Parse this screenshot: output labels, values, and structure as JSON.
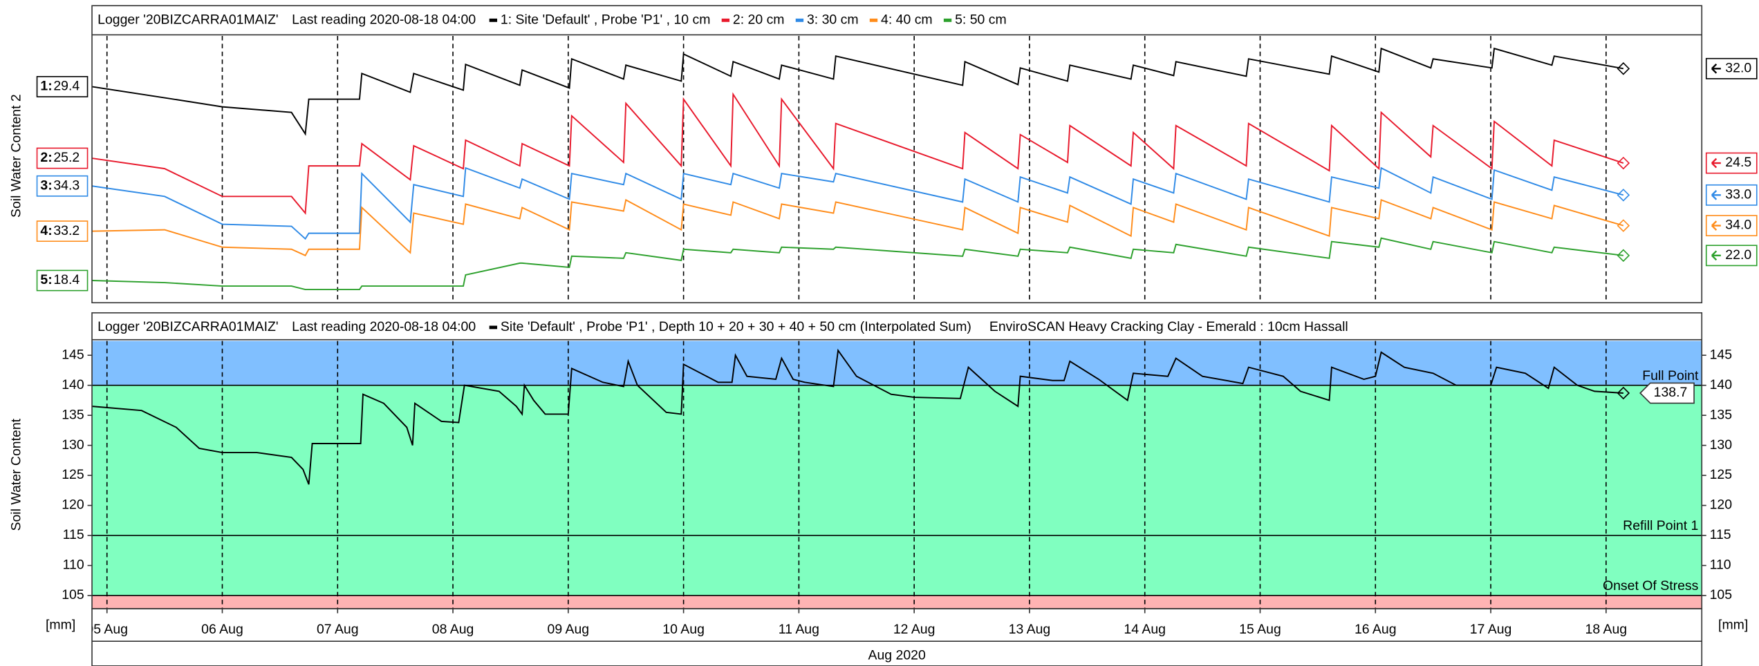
{
  "chart_data": [
    {
      "type": "line",
      "title": "Logger '20BIZCARRA01MAIZ'",
      "subtitle": "Last reading 2020-08-18 04:00",
      "y_label": "Soil Water Content 2",
      "x": [
        4.87,
        5.5,
        6.0,
        6.6,
        6.72,
        6.75,
        7.19,
        7.21,
        7.63,
        7.66,
        8.09,
        8.11,
        8.58,
        8.6,
        9.01,
        9.03,
        9.48,
        9.5,
        9.98,
        10.0,
        10.41,
        10.43,
        10.83,
        10.85,
        11.3,
        11.32,
        12.42,
        12.44,
        12.9,
        12.92,
        13.33,
        13.35,
        13.88,
        13.9,
        14.25,
        14.27,
        14.88,
        14.9,
        15.6,
        15.62,
        16.03,
        16.05,
        16.48,
        16.5,
        17.01,
        17.03,
        17.53,
        17.55,
        18.15
      ],
      "xlim": [
        4.87,
        18.83
      ],
      "xticks": [
        5,
        6,
        7,
        8,
        9,
        10,
        11,
        12,
        13,
        14,
        15,
        16,
        17,
        18
      ],
      "grid": true,
      "series": [
        {
          "name": "1: Site 'Default' , Probe 'P1' , 10 cm",
          "label": "1:",
          "color": "#000000",
          "ylim": [
            -1.7,
            36.7
          ],
          "end_label": "32.0",
          "values": [
            29.4,
            27.8,
            26.5,
            25.7,
            22.6,
            27.6,
            27.6,
            31.3,
            28.6,
            31.3,
            28.9,
            32.6,
            29.6,
            31.8,
            29.2,
            33.4,
            30.5,
            32.5,
            30.2,
            34.1,
            30.9,
            33.0,
            30.5,
            32.5,
            30.5,
            33.8,
            29.6,
            33.0,
            29.7,
            32.1,
            30.2,
            32.5,
            30.5,
            32.5,
            31.0,
            33.0,
            30.9,
            33.4,
            31.2,
            33.8,
            31.5,
            34.9,
            32.1,
            33.4,
            32.1,
            34.9,
            32.5,
            33.8,
            32.0
          ]
        },
        {
          "name": "2: 20 cm",
          "label": "2:",
          "color": "#e8192c",
          "ylim": [
            4.4,
            42.8
          ],
          "end_label": "24.5",
          "values": [
            25.2,
            23.7,
            19.7,
            19.7,
            17.3,
            24.1,
            24.1,
            27.3,
            22.1,
            27.0,
            23.7,
            27.8,
            24.1,
            27.3,
            24.1,
            31.3,
            24.6,
            33.1,
            24.1,
            33.7,
            24.1,
            34.4,
            24.1,
            33.7,
            23.7,
            30.2,
            23.7,
            28.9,
            23.7,
            28.6,
            24.6,
            29.9,
            24.1,
            28.9,
            23.7,
            29.9,
            24.1,
            30.2,
            23.4,
            29.9,
            23.7,
            31.8,
            25.4,
            29.9,
            23.7,
            30.5,
            24.1,
            27.8,
            24.5
          ]
        },
        {
          "name": "3: 30 cm",
          "label": "3:",
          "color": "#2f8ae6",
          "ylim": [
            17.5,
            55.9
          ],
          "end_label": "33.0",
          "values": [
            34.3,
            32.8,
            28.8,
            28.5,
            26.7,
            27.5,
            27.5,
            36.1,
            29.1,
            34.5,
            32.8,
            36.9,
            34.0,
            35.3,
            32.4,
            36.1,
            34.5,
            36.1,
            32.4,
            36.1,
            34.5,
            36.1,
            34.0,
            36.1,
            34.9,
            36.1,
            32.0,
            35.3,
            32.0,
            35.6,
            33.3,
            35.6,
            31.7,
            35.3,
            33.3,
            36.1,
            32.4,
            35.3,
            32.0,
            35.6,
            34.0,
            36.9,
            33.3,
            35.6,
            32.4,
            36.6,
            33.7,
            35.6,
            33.0
          ]
        },
        {
          "name": "4: 40 cm",
          "label": "4:",
          "color": "#ff8c1a",
          "ylim": [
            22.9,
            61.3
          ],
          "end_label": "34.0",
          "values": [
            33.2,
            33.4,
            30.9,
            30.6,
            29.7,
            30.6,
            30.6,
            36.6,
            30.1,
            35.8,
            34.2,
            37.1,
            35.0,
            36.6,
            33.4,
            37.4,
            36.1,
            37.7,
            33.4,
            37.1,
            35.5,
            37.4,
            35.0,
            37.1,
            35.8,
            37.4,
            33.4,
            36.6,
            32.9,
            36.6,
            34.5,
            36.9,
            32.5,
            36.6,
            34.5,
            37.1,
            33.4,
            36.6,
            32.5,
            36.6,
            35.0,
            37.7,
            35.0,
            36.6,
            33.4,
            37.4,
            35.0,
            36.9,
            34.0
          ]
        },
        {
          "name": "5: 50 cm",
          "label": "5:",
          "color": "#2ca02c",
          "ylim": [
            15.2,
            53.6
          ],
          "end_label": "22.0",
          "values": [
            18.4,
            18.1,
            17.6,
            17.6,
            17.1,
            17.1,
            17.1,
            17.6,
            17.6,
            17.6,
            17.6,
            19.2,
            20.9,
            20.9,
            20.3,
            21.9,
            21.6,
            22.4,
            21.3,
            22.9,
            22.4,
            22.9,
            22.4,
            23.2,
            22.9,
            23.2,
            21.9,
            22.9,
            21.9,
            22.9,
            22.4,
            23.2,
            21.6,
            22.9,
            22.4,
            23.6,
            21.9,
            23.2,
            21.6,
            24.0,
            23.2,
            24.5,
            22.9,
            24.0,
            22.4,
            24.0,
            22.4,
            23.2,
            22.0
          ]
        }
      ]
    },
    {
      "type": "line",
      "title": "Logger '20BIZCARRA01MAIZ'",
      "subtitle": "Last reading 2020-08-18 04:00",
      "note": "EnviroSCAN Heavy Cracking Clay - Emerald : 10cm Hassall",
      "y_label": "Soil Water Content",
      "unit_label": "[mm]",
      "x_label": "Aug 2020",
      "x": [
        4.87,
        5.3,
        5.6,
        5.8,
        6.0,
        6.3,
        6.6,
        6.7,
        6.75,
        6.78,
        7.2,
        7.22,
        7.4,
        7.6,
        7.65,
        7.67,
        7.9,
        8.05,
        8.1,
        8.4,
        8.55,
        8.6,
        8.62,
        8.7,
        8.8,
        9.0,
        9.03,
        9.3,
        9.48,
        9.52,
        9.6,
        9.85,
        9.98,
        10.0,
        10.3,
        10.42,
        10.45,
        10.55,
        10.8,
        10.85,
        10.95,
        11.05,
        11.3,
        11.34,
        11.5,
        11.8,
        12.0,
        12.4,
        12.47,
        12.7,
        12.9,
        12.92,
        13.2,
        13.3,
        13.35,
        13.6,
        13.85,
        13.9,
        14.2,
        14.27,
        14.5,
        14.85,
        14.9,
        15.2,
        15.35,
        15.6,
        15.62,
        15.9,
        16.0,
        16.05,
        16.25,
        16.5,
        16.7,
        17.0,
        17.05,
        17.3,
        17.5,
        17.55,
        17.75,
        17.9,
        18.15
      ],
      "xlim": [
        4.87,
        18.83
      ],
      "xticks": [
        {
          "value": 5,
          "label": "05 Aug"
        },
        {
          "value": 6,
          "label": "06 Aug"
        },
        {
          "value": 7,
          "label": "07 Aug"
        },
        {
          "value": 8,
          "label": "08 Aug"
        },
        {
          "value": 9,
          "label": "09 Aug"
        },
        {
          "value": 10,
          "label": "10 Aug"
        },
        {
          "value": 11,
          "label": "11 Aug"
        },
        {
          "value": 12,
          "label": "12 Aug"
        },
        {
          "value": 13,
          "label": "13 Aug"
        },
        {
          "value": 14,
          "label": "14 Aug"
        },
        {
          "value": 15,
          "label": "15 Aug"
        },
        {
          "value": 16,
          "label": "16 Aug"
        },
        {
          "value": 17,
          "label": "17 Aug"
        },
        {
          "value": 18,
          "label": "18 Aug"
        }
      ],
      "ylim": [
        102.8,
        147.4
      ],
      "yticks": [
        105,
        110,
        115,
        120,
        125,
        130,
        135,
        140,
        145
      ],
      "grid": true,
      "zones": [
        {
          "from": 140,
          "to": 147.4,
          "color": "#80bfff"
        },
        {
          "from": 105,
          "to": 140,
          "color": "#80ffc0"
        },
        {
          "from": 102.8,
          "to": 105,
          "color": "#ffb3b3"
        }
      ],
      "reference_lines": [
        {
          "value": 140,
          "label": "Full Point"
        },
        {
          "value": 115,
          "label": "Refill Point 1"
        },
        {
          "value": 105,
          "label": "Onset Of Stress"
        }
      ],
      "series": [
        {
          "name": "Site 'Default' , Probe 'P1' , Depth 10 + 20 + 30 + 40 + 50 cm (Interpolated Sum)",
          "color": "#000000",
          "values": [
            136.5,
            135.8,
            133,
            129.5,
            128.8,
            128.8,
            128,
            126,
            123.5,
            130.3,
            130.3,
            138.5,
            137,
            133,
            130,
            137,
            134,
            133.8,
            140,
            139,
            136.5,
            135.2,
            140,
            137.5,
            135.2,
            135.2,
            142.8,
            140.5,
            139.8,
            144,
            140,
            135.5,
            135.2,
            143.5,
            140.5,
            140.5,
            145,
            141.5,
            141,
            144.5,
            141,
            140.5,
            139.8,
            145.8,
            141.5,
            138.5,
            138,
            137.8,
            143,
            139,
            136.5,
            141.5,
            140.8,
            140.8,
            144,
            141,
            137.5,
            142,
            141.5,
            144.5,
            141.5,
            140.3,
            143,
            141.5,
            139,
            137.5,
            143,
            141,
            141.5,
            145.5,
            143,
            142,
            140,
            140,
            143,
            142,
            139.5,
            143,
            140,
            139,
            138.7
          ]
        }
      ]
    }
  ]
}
